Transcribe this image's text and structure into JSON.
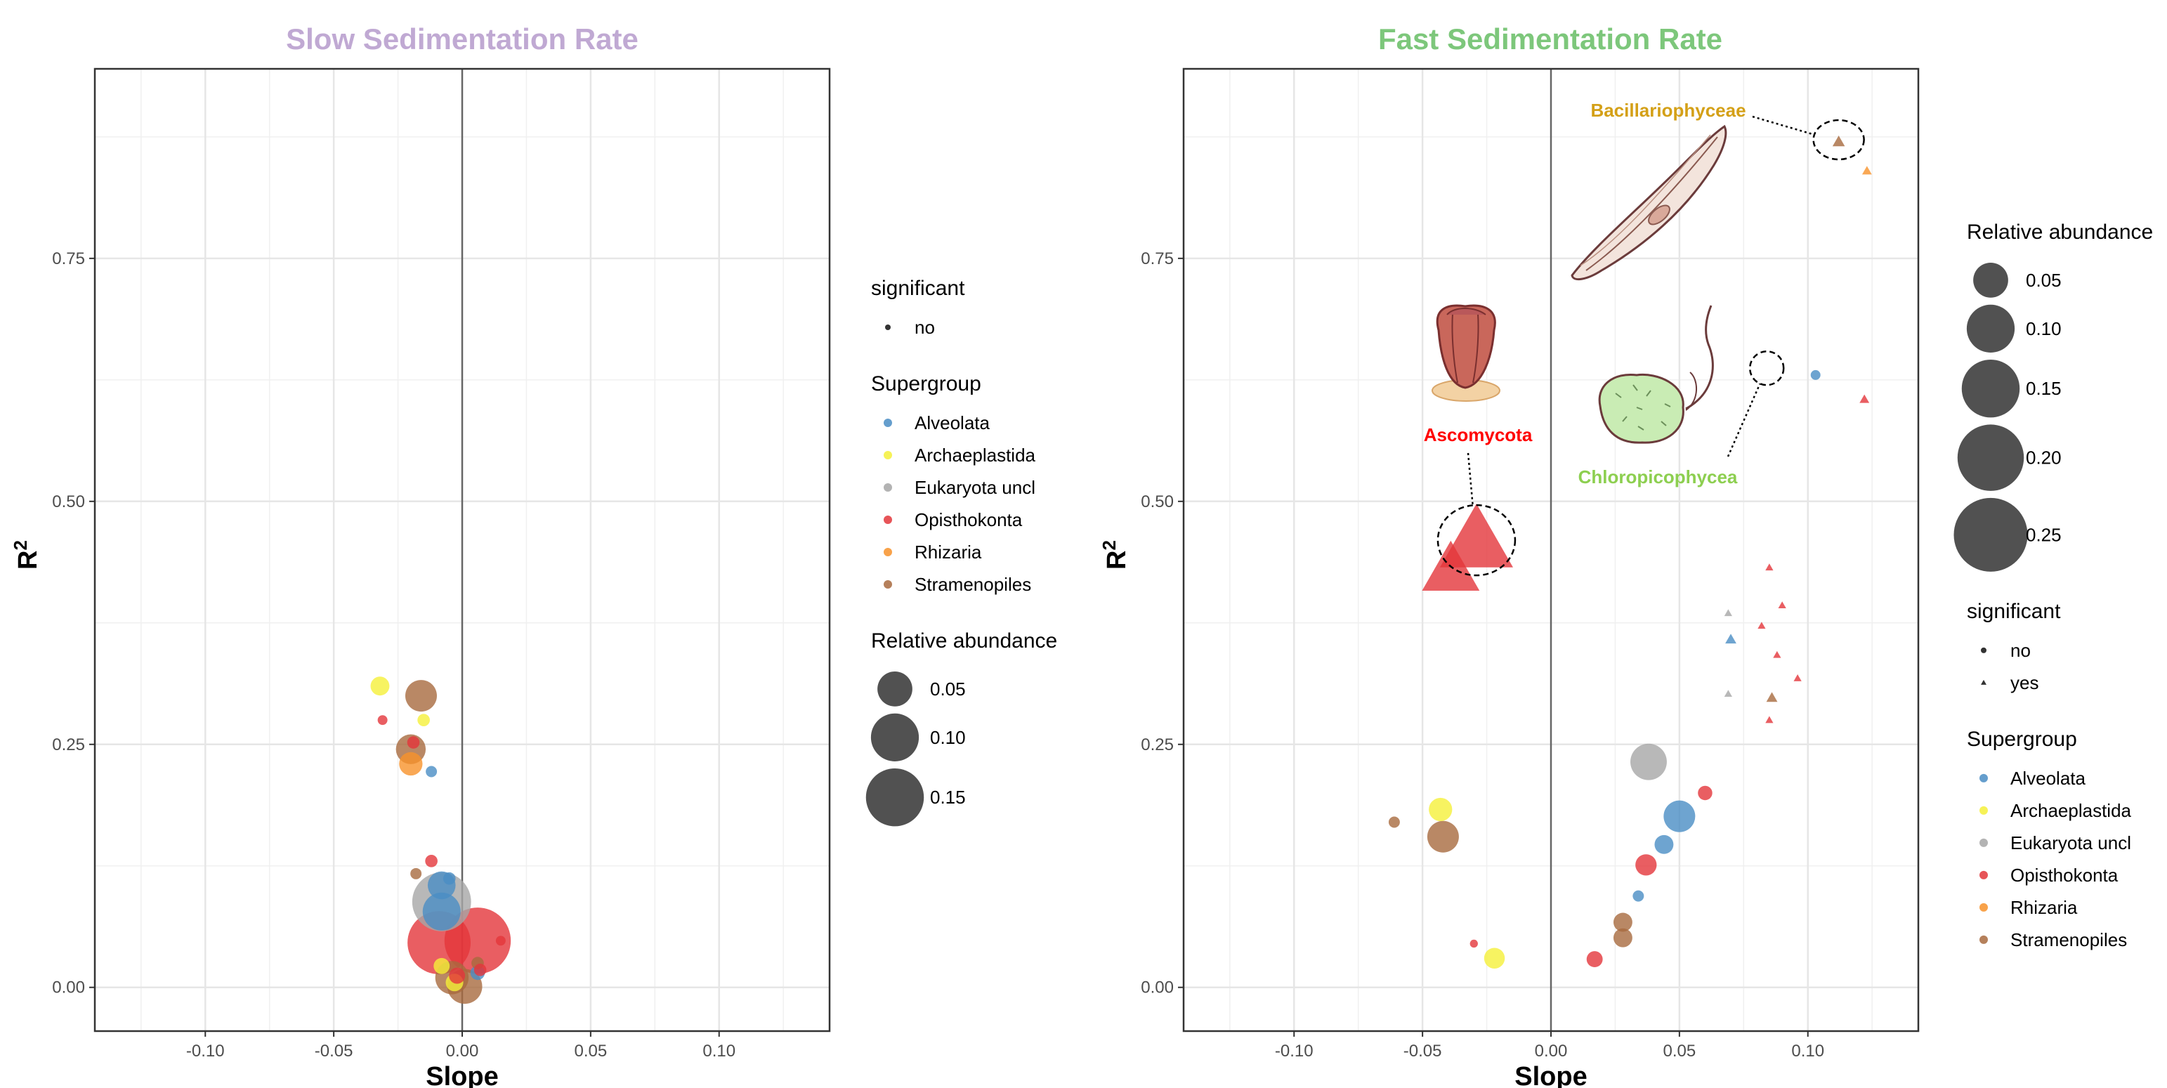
{
  "colors": {
    "Alveolata": "#4a8dc4",
    "Archaeplastida": "#f5f03a",
    "Eukaryota uncl": "#a6a6a6",
    "Opisthokonta": "#e3363b",
    "Rhizaria": "#f7922a",
    "Stramenopiles": "#a86a3e",
    "slow_title": "#c0a9d3",
    "fast_title": "#7dc77b",
    "bacillario_label": "#d4a017",
    "asco_label": "#ff0000",
    "chloro_label": "#8dcf50"
  },
  "icons": [
    "diatom-illustration",
    "ascomycete-illustration",
    "chloropicophyceae-illustration"
  ],
  "chart_data": [
    {
      "type": "scatter",
      "title": "Slow Sedimentation Rate",
      "xlabel": "Slope",
      "ylabel": "R²",
      "xlim": [
        -0.143,
        0.143
      ],
      "ylim": [
        -0.045,
        0.945
      ],
      "xticks": [
        -0.1,
        -0.05,
        0.0,
        0.05,
        0.1
      ],
      "xtick_labels": [
        "-0.10",
        "-0.05",
        "0.00",
        "0.05",
        "0.10"
      ],
      "yticks": [
        0.0,
        0.25,
        0.5,
        0.75
      ],
      "ytick_labels": [
        "0.00",
        "0.25",
        "0.50",
        "0.75"
      ],
      "grid": true,
      "legend": {
        "placement": "right",
        "sections": [
          {
            "title": "significant",
            "items": [
              {
                "label": "no",
                "shape": "circle"
              }
            ]
          },
          {
            "title": "Supergroup",
            "items": [
              "Alveolata",
              "Archaeplastida",
              "Eukaryota uncl",
              "Opisthokonta",
              "Rhizaria",
              "Stramenopiles"
            ]
          },
          {
            "title": "Relative abundance",
            "items": [
              {
                "label": "0.05",
                "value": 0.05
              },
              {
                "label": "0.10",
                "value": 0.1
              },
              {
                "label": "0.15",
                "value": 0.15
              }
            ]
          }
        ]
      },
      "points": [
        {
          "x": -0.032,
          "y": 0.31,
          "size": 0.012,
          "group": "Archaeplastida",
          "shape": "circle"
        },
        {
          "x": -0.031,
          "y": 0.275,
          "size": 0.002,
          "group": "Opisthokonta",
          "shape": "circle"
        },
        {
          "x": -0.016,
          "y": 0.3,
          "size": 0.04,
          "group": "Stramenopiles",
          "shape": "circle"
        },
        {
          "x": -0.015,
          "y": 0.275,
          "size": 0.004,
          "group": "Archaeplastida",
          "shape": "circle"
        },
        {
          "x": -0.019,
          "y": 0.252,
          "size": 0.004,
          "group": "Opisthokonta",
          "shape": "circle"
        },
        {
          "x": -0.02,
          "y": 0.245,
          "size": 0.035,
          "group": "Stramenopiles",
          "shape": "circle"
        },
        {
          "x": -0.02,
          "y": 0.23,
          "size": 0.02,
          "group": "Rhizaria",
          "shape": "circle"
        },
        {
          "x": -0.012,
          "y": 0.222,
          "size": 0.003,
          "group": "Alveolata",
          "shape": "circle"
        },
        {
          "x": -0.012,
          "y": 0.13,
          "size": 0.004,
          "group": "Opisthokonta",
          "shape": "circle"
        },
        {
          "x": -0.018,
          "y": 0.117,
          "size": 0.003,
          "group": "Stramenopiles",
          "shape": "circle"
        },
        {
          "x": -0.005,
          "y": 0.112,
          "size": 0.004,
          "group": "Alveolata",
          "shape": "circle"
        },
        {
          "x": -0.008,
          "y": 0.105,
          "size": 0.03,
          "group": "Alveolata",
          "shape": "circle"
        },
        {
          "x": -0.008,
          "y": 0.088,
          "size": 0.155,
          "group": "Eukaryota uncl",
          "shape": "circle"
        },
        {
          "x": -0.008,
          "y": 0.078,
          "size": 0.06,
          "group": "Alveolata",
          "shape": "circle"
        },
        {
          "x": -0.009,
          "y": 0.046,
          "size": 0.18,
          "group": "Opisthokonta",
          "shape": "circle"
        },
        {
          "x": 0.006,
          "y": 0.048,
          "size": 0.2,
          "group": "Opisthokonta",
          "shape": "circle"
        },
        {
          "x": 0.015,
          "y": 0.048,
          "size": 0.002,
          "group": "Opisthokonta",
          "shape": "circle"
        },
        {
          "x": -0.008,
          "y": 0.022,
          "size": 0.008,
          "group": "Archaeplastida",
          "shape": "circle"
        },
        {
          "x": 0.006,
          "y": 0.025,
          "size": 0.004,
          "group": "Stramenopiles",
          "shape": "circle"
        },
        {
          "x": -0.004,
          "y": 0.01,
          "size": 0.045,
          "group": "Stramenopiles",
          "shape": "circle"
        },
        {
          "x": -0.003,
          "y": 0.005,
          "size": 0.01,
          "group": "Archaeplastida",
          "shape": "circle"
        },
        {
          "x": -0.002,
          "y": 0.012,
          "size": 0.008,
          "group": "Opisthokonta",
          "shape": "circle"
        },
        {
          "x": 0.001,
          "y": 0.001,
          "size": 0.05,
          "group": "Stramenopiles",
          "shape": "circle"
        },
        {
          "x": 0.006,
          "y": 0.015,
          "size": 0.006,
          "group": "Alveolata",
          "shape": "circle"
        },
        {
          "x": 0.007,
          "y": 0.018,
          "size": 0.004,
          "group": "Opisthokonta",
          "shape": "circle"
        }
      ]
    },
    {
      "type": "scatter",
      "title": "Fast Sedimentation Rate",
      "xlabel": "Slope",
      "ylabel": "R²",
      "xlim": [
        -0.143,
        0.143
      ],
      "ylim": [
        -0.045,
        0.945
      ],
      "xticks": [
        -0.1,
        -0.05,
        0.0,
        0.05,
        0.1
      ],
      "xtick_labels": [
        "-0.10",
        "-0.05",
        "0.00",
        "0.05",
        "0.10"
      ],
      "yticks": [
        0.0,
        0.25,
        0.5,
        0.75
      ],
      "ytick_labels": [
        "0.00",
        "0.25",
        "0.50",
        "0.75"
      ],
      "grid": true,
      "legend": {
        "placement": "right",
        "sections": [
          {
            "title": "Relative abundance",
            "items": [
              {
                "label": "0.05",
                "value": 0.05
              },
              {
                "label": "0.10",
                "value": 0.1
              },
              {
                "label": "0.15",
                "value": 0.15
              },
              {
                "label": "0.20",
                "value": 0.2
              },
              {
                "label": "0.25",
                "value": 0.25
              }
            ]
          },
          {
            "title": "significant",
            "items": [
              {
                "label": "no",
                "shape": "circle"
              },
              {
                "label": "yes",
                "shape": "triangle"
              }
            ]
          },
          {
            "title": "Supergroup",
            "items": [
              "Alveolata",
              "Archaeplastida",
              "Eukaryota uncl",
              "Opisthokonta",
              "Rhizaria",
              "Stramenopiles"
            ]
          }
        ]
      },
      "annotations": [
        {
          "text": "Bacillariophyceae",
          "target": {
            "x": 0.112,
            "y": 0.872
          },
          "color_key": "bacillario_label"
        },
        {
          "text": "Ascomycota",
          "target": {
            "x": -0.029,
            "y": 0.46
          },
          "color_key": "asco_label"
        },
        {
          "text": "Chloropicophycea",
          "target": {
            "x": 0.084,
            "y": 0.637
          },
          "color_key": "chloro_label"
        }
      ],
      "points": [
        {
          "x": 0.112,
          "y": 0.87,
          "size": 0.004,
          "group": "Stramenopiles",
          "shape": "triangle"
        },
        {
          "x": 0.123,
          "y": 0.84,
          "size": 0.002,
          "group": "Rhizaria",
          "shape": "triangle"
        },
        {
          "x": 0.103,
          "y": 0.63,
          "size": 0.002,
          "group": "Alveolata",
          "shape": "circle"
        },
        {
          "x": 0.122,
          "y": 0.605,
          "size": 0.002,
          "group": "Opisthokonta",
          "shape": "triangle"
        },
        {
          "x": -0.029,
          "y": 0.46,
          "size": 0.25,
          "group": "Opisthokonta",
          "shape": "triangle"
        },
        {
          "x": -0.039,
          "y": 0.43,
          "size": 0.15,
          "group": "Opisthokonta",
          "shape": "triangle"
        },
        {
          "x": 0.085,
          "y": 0.432,
          "size": 0.001,
          "group": "Opisthokonta",
          "shape": "triangle"
        },
        {
          "x": 0.09,
          "y": 0.393,
          "size": 0.001,
          "group": "Opisthokonta",
          "shape": "triangle"
        },
        {
          "x": 0.069,
          "y": 0.385,
          "size": 0.001,
          "group": "Eukaryota uncl",
          "shape": "triangle"
        },
        {
          "x": 0.082,
          "y": 0.372,
          "size": 0.001,
          "group": "Opisthokonta",
          "shape": "triangle"
        },
        {
          "x": 0.07,
          "y": 0.358,
          "size": 0.003,
          "group": "Alveolata",
          "shape": "triangle"
        },
        {
          "x": 0.088,
          "y": 0.342,
          "size": 0.001,
          "group": "Opisthokonta",
          "shape": "triangle"
        },
        {
          "x": 0.096,
          "y": 0.318,
          "size": 0.001,
          "group": "Opisthokonta",
          "shape": "triangle"
        },
        {
          "x": 0.069,
          "y": 0.302,
          "size": 0.001,
          "group": "Eukaryota uncl",
          "shape": "triangle"
        },
        {
          "x": 0.086,
          "y": 0.298,
          "size": 0.003,
          "group": "Stramenopiles",
          "shape": "triangle"
        },
        {
          "x": 0.085,
          "y": 0.275,
          "size": 0.001,
          "group": "Opisthokonta",
          "shape": "triangle"
        },
        {
          "x": 0.038,
          "y": 0.232,
          "size": 0.055,
          "group": "Eukaryota uncl",
          "shape": "circle"
        },
        {
          "x": 0.06,
          "y": 0.2,
          "size": 0.006,
          "group": "Opisthokonta",
          "shape": "circle"
        },
        {
          "x": -0.043,
          "y": 0.183,
          "size": 0.02,
          "group": "Archaeplastida",
          "shape": "circle"
        },
        {
          "x": 0.05,
          "y": 0.176,
          "size": 0.04,
          "group": "Alveolata",
          "shape": "circle"
        },
        {
          "x": -0.061,
          "y": 0.17,
          "size": 0.003,
          "group": "Stramenopiles",
          "shape": "circle"
        },
        {
          "x": -0.042,
          "y": 0.155,
          "size": 0.04,
          "group": "Stramenopiles",
          "shape": "circle"
        },
        {
          "x": 0.044,
          "y": 0.147,
          "size": 0.012,
          "group": "Alveolata",
          "shape": "circle"
        },
        {
          "x": 0.037,
          "y": 0.126,
          "size": 0.016,
          "group": "Opisthokonta",
          "shape": "circle"
        },
        {
          "x": 0.034,
          "y": 0.094,
          "size": 0.003,
          "group": "Alveolata",
          "shape": "circle"
        },
        {
          "x": 0.028,
          "y": 0.067,
          "size": 0.012,
          "group": "Stramenopiles",
          "shape": "circle"
        },
        {
          "x": 0.028,
          "y": 0.051,
          "size": 0.012,
          "group": "Stramenopiles",
          "shape": "circle"
        },
        {
          "x": -0.03,
          "y": 0.045,
          "size": 0.001,
          "group": "Opisthokonta",
          "shape": "circle"
        },
        {
          "x": -0.022,
          "y": 0.03,
          "size": 0.015,
          "group": "Archaeplastida",
          "shape": "circle"
        },
        {
          "x": 0.017,
          "y": 0.029,
          "size": 0.008,
          "group": "Opisthokonta",
          "shape": "circle"
        }
      ]
    }
  ]
}
